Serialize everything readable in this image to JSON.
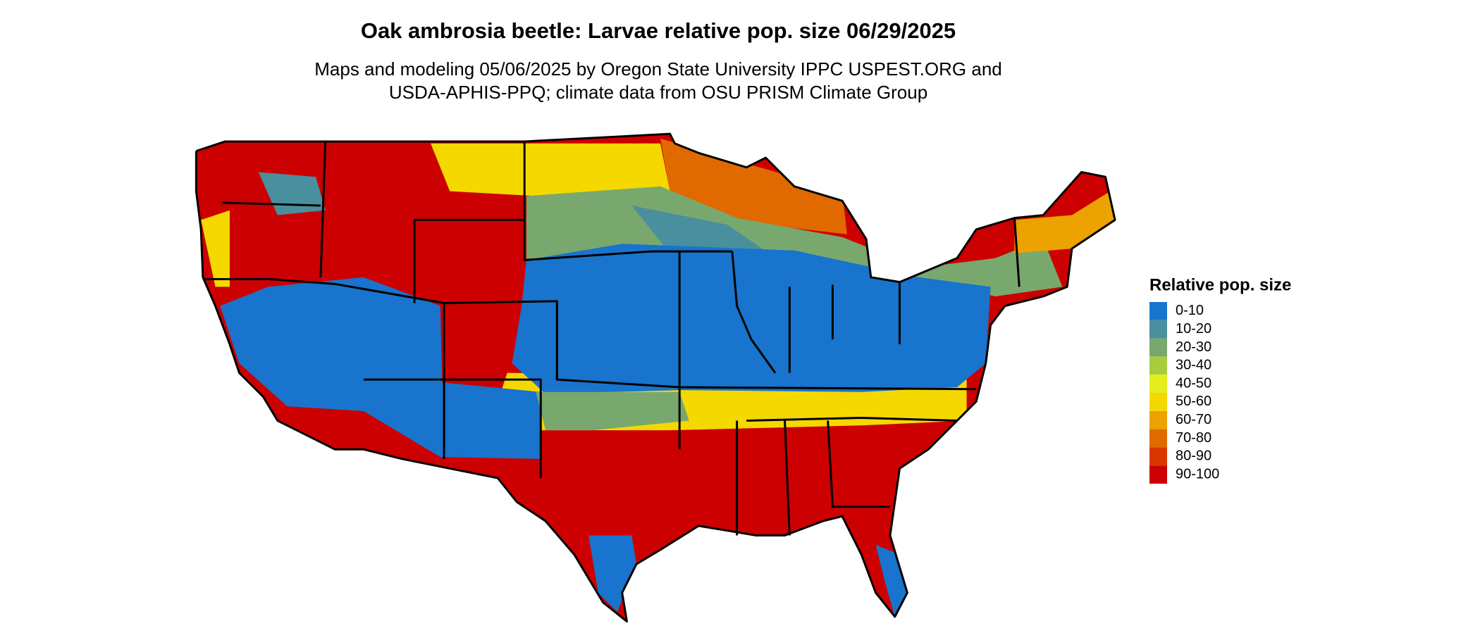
{
  "title": "Oak ambrosia beetle: Larvae relative pop. size 06/29/2025",
  "subtitle": [
    "Maps and modeling 05/06/2025 by Oregon State University IPPC USPEST.ORG and",
    "USDA-APHIS-PPQ; climate data from OSU PRISM Climate Group"
  ],
  "legend": {
    "title": "Relative pop. size",
    "items": [
      {
        "label": "0-10",
        "color": "#1874cd"
      },
      {
        "label": "10-20",
        "color": "#4a8f9e"
      },
      {
        "label": "20-30",
        "color": "#79a86e"
      },
      {
        "label": "30-40",
        "color": "#a9cc3c"
      },
      {
        "label": "40-50",
        "color": "#e4ee1e"
      },
      {
        "label": "50-60",
        "color": "#f5d800"
      },
      {
        "label": "60-70",
        "color": "#eca200"
      },
      {
        "label": "70-80",
        "color": "#e06a00"
      },
      {
        "label": "80-90",
        "color": "#d83800"
      },
      {
        "label": "90-100",
        "color": "#cc0000"
      }
    ]
  }
}
